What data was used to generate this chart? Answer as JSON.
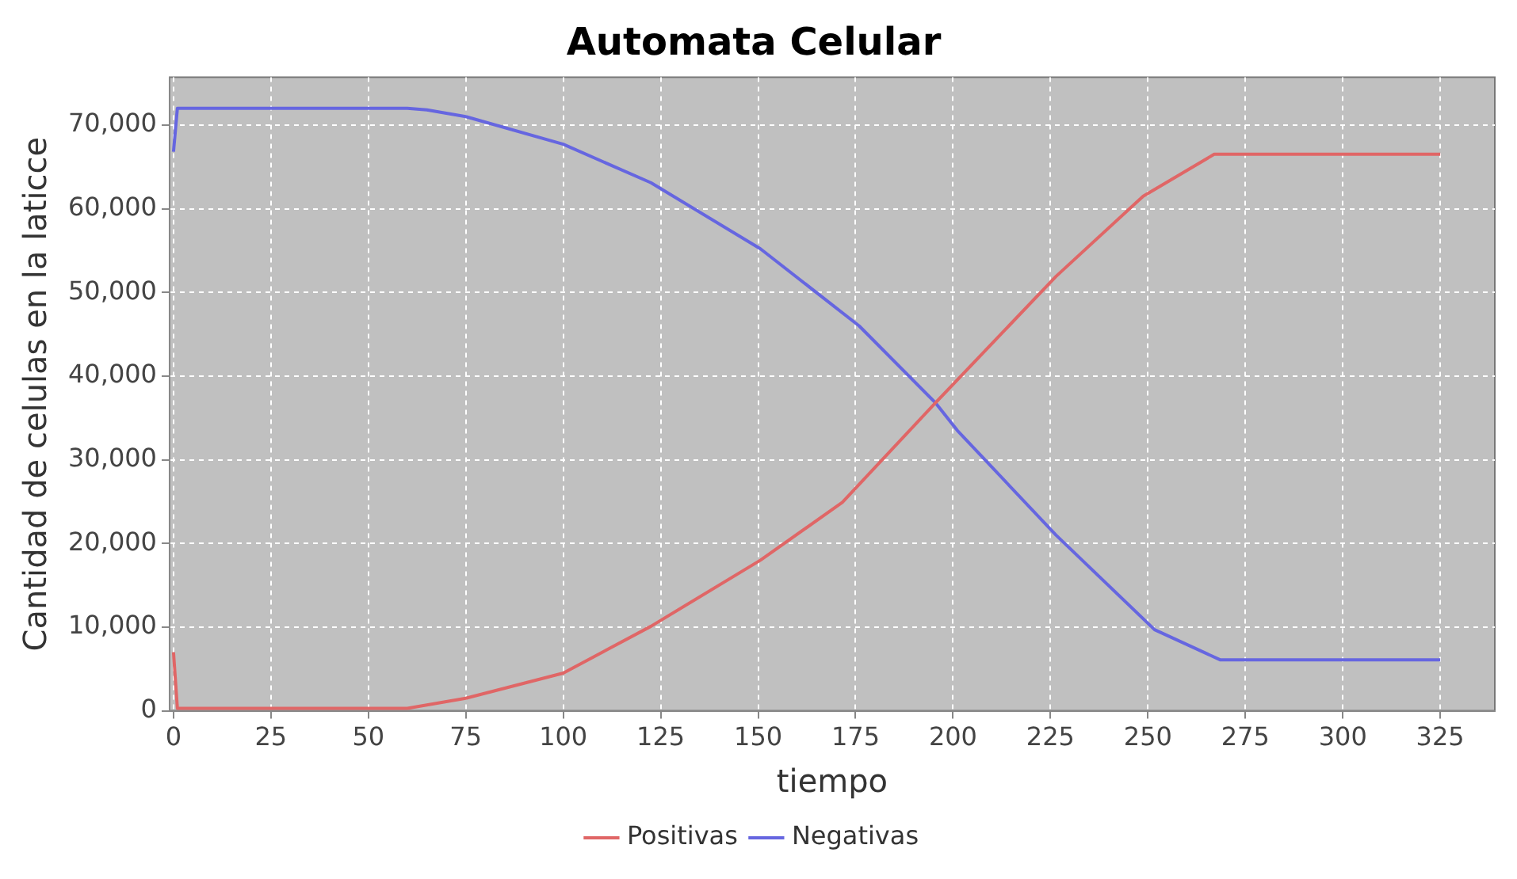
{
  "chart_data": {
    "type": "line",
    "title": "Automata Celular",
    "xlabel": "tiempo",
    "ylabel": "Cantidad de celulas en la laticce",
    "xlim": [
      -1,
      339
    ],
    "xticks": [
      0,
      25,
      50,
      75,
      100,
      125,
      150,
      175,
      200,
      225,
      250,
      275,
      300,
      325
    ],
    "ylim": [
      0,
      75700
    ],
    "yticks": [
      0,
      {
        "value": 10000,
        "label": "10,000"
      },
      {
        "value": 20000,
        "label": "20,000"
      },
      {
        "value": 30000,
        "label": "30,000"
      },
      {
        "value": 40000,
        "label": "40,000"
      },
      {
        "value": 50000,
        "label": "50,000"
      },
      {
        "value": 60000,
        "label": "60,000"
      },
      {
        "value": 70000,
        "label": "70,000"
      }
    ],
    "grid": true,
    "legend": "bottom",
    "marker": "none",
    "line_style": "solid",
    "series": [
      {
        "name": "Positivas",
        "color": "#e06666",
        "x": [
          0,
          1,
          25,
          50,
          60,
          75,
          100,
          122.5,
          150.6,
          171.6,
          195.5,
          226.4,
          248.8,
          267,
          300,
          325
        ],
        "values": [
          7000,
          300,
          300,
          300,
          300,
          1500,
          4500,
          10100,
          18000,
          24900,
          36800,
          51900,
          61500,
          66500,
          66500,
          66500
        ]
      },
      {
        "name": "Negativas",
        "color": "#6666e0",
        "x": [
          0,
          1,
          25,
          50,
          60,
          65,
          75,
          100,
          122.5,
          150.6,
          175.9,
          195.5,
          201.1,
          226.4,
          251.7,
          268.5,
          300,
          325
        ],
        "values": [
          66800,
          72000,
          72000,
          72000,
          72000,
          71800,
          71000,
          67700,
          63100,
          55200,
          46000,
          36800,
          33500,
          21000,
          9700,
          6100,
          6100,
          6100
        ]
      }
    ]
  }
}
